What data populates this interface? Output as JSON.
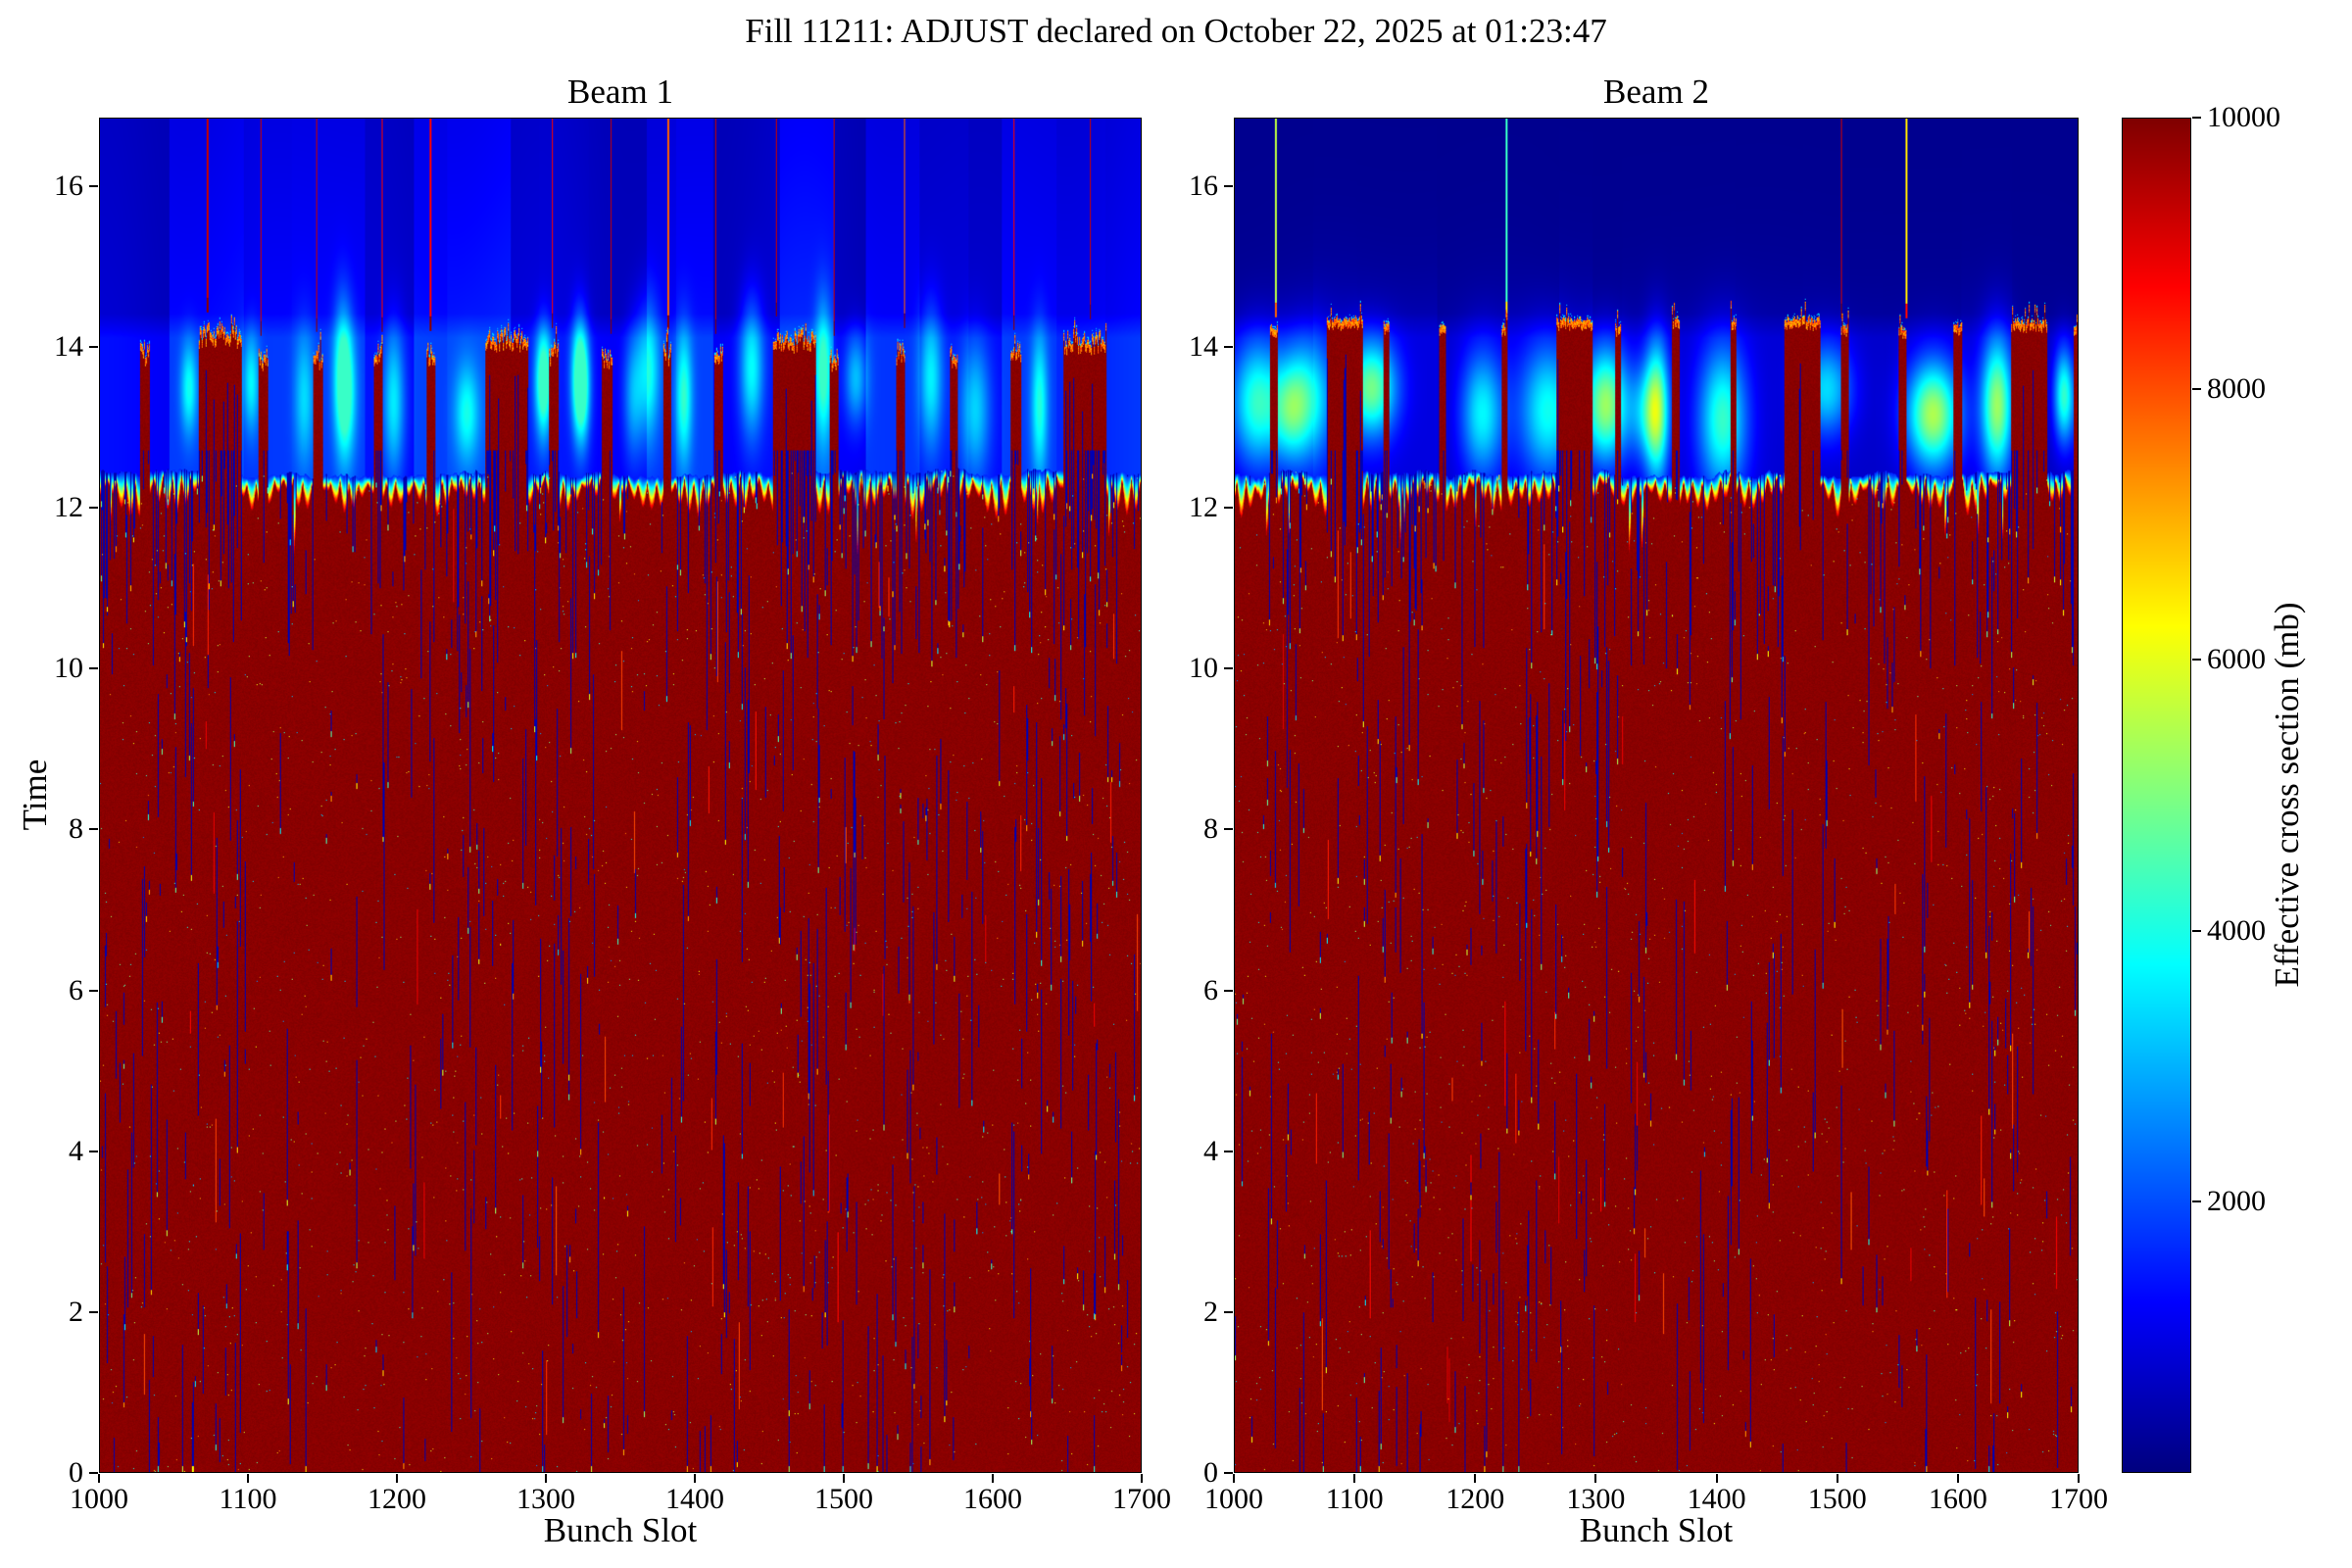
{
  "chart_data": {
    "type": "heatmap",
    "title": "Fill 11211: ADJUST declared on October 22, 2025 at 01:23:47",
    "xlabel": "Bunch Slot",
    "ylabel": "Time",
    "value_label": "Effective cross section (mb)",
    "colormap": "jet",
    "value_range": [
      0,
      10000
    ],
    "colorbar_ticks": [
      2000,
      4000,
      6000,
      8000,
      10000
    ],
    "colorbar_stops": [
      [
        "#00007f",
        0
      ],
      [
        "#0000ff",
        12.5
      ],
      [
        "#00ffff",
        37.5
      ],
      [
        "#ffff00",
        62.5
      ],
      [
        "#ff0000",
        87.5
      ],
      [
        "#7f0000",
        100
      ]
    ],
    "x_range": [
      1000,
      1700
    ],
    "y_range": [
      0,
      16.85
    ],
    "x_ticks": [
      1000,
      1100,
      1200,
      1300,
      1400,
      1500,
      1600,
      1700
    ],
    "y_ticks": [
      0,
      2,
      4,
      6,
      8,
      10,
      12,
      14,
      16
    ],
    "legend_position": "right-colorbar",
    "grid": false,
    "structure_notes": [
      {
        "time_band": "0 - 12.4",
        "content": "saturated collision region, value ~10000 (dark red) with sparse low-value (~500) vertical bunch-slot streaks, bright caps 3500-7500 at streak ends and rare speckles 2500-7500"
      },
      {
        "time_band": "12.3 - 12.5",
        "content": "ragged rainbow transition fringe between low background and saturated region"
      },
      {
        "time_band": "12.4 - 14.3",
        "content": "injected bunch trains at value ~10000 separated by low gaps ~1200 containing diffuse mid-value glows 3000-7000"
      },
      {
        "time_band": "14.3 - 16.85",
        "content": "pre-injection background ~600-1900 with thin full-height spike columns at train positions"
      }
    ],
    "panels": [
      {
        "name": "Beam 1",
        "seed": 20251022,
        "sea_top": 12.42,
        "sea_value": 9900,
        "bg0": 650,
        "bg_floor": 400,
        "block_amp": 900,
        "smooth_amp": 250,
        "band_top": 14.35,
        "fade_scale": 6.0,
        "gap_boost": 550,
        "gap_top": 14.42,
        "train": {
          "start": 1026,
          "step": 39,
          "count": 17,
          "wide_every": 5,
          "wide_phase": 1,
          "narrow_w": 6,
          "wide_w": 29,
          "top_wide": 14.15,
          "top_narrow": 13.95,
          "ragged": 0.13
        },
        "spikes": {
          "prob": 0.8,
          "palette": [
            9300,
            8800,
            7800
          ],
          "bottom_offset": 0.25
        },
        "glows": {
          "mode": "gap",
          "cy": 13.45,
          "amp": [
            1500,
            2600
          ],
          "cap": 4300
        },
        "streaks": {
          "density": 0.34,
          "orange_prob": 0.04
        },
        "speck_prob": 0.0018
      },
      {
        "name": "Beam 2",
        "seed": 97531,
        "sea_top": 12.42,
        "sea_value": 9900,
        "bg0": 300,
        "bg_floor": 150,
        "block_amp": 300,
        "smooth_amp": 140,
        "band_top": 14.35,
        "fade_scale": 0.6,
        "gap_boost": 420,
        "gap_top": 14.42,
        "train": {
          "start": 1030,
          "step": 47.5,
          "count": 15,
          "wide_every": 4,
          "wide_phase": 1,
          "narrow_w": 6,
          "wide_w": 30,
          "top_wide": 14.32,
          "top_narrow": 14.3,
          "ragged": 0.05
        },
        "spikes": {
          "prob": 0.6,
          "palette": [
            4300,
            5600,
            6500,
            9200
          ],
          "bottom_offset": 0.12
        },
        "glows": {
          "mode": "left",
          "cy": 13.3,
          "amp": [
            2600,
            5200
          ],
          "cap": 7000
        },
        "streaks": {
          "density": 0.34,
          "orange_prob": 0.04
        },
        "speck_prob": 0.0018
      }
    ]
  }
}
